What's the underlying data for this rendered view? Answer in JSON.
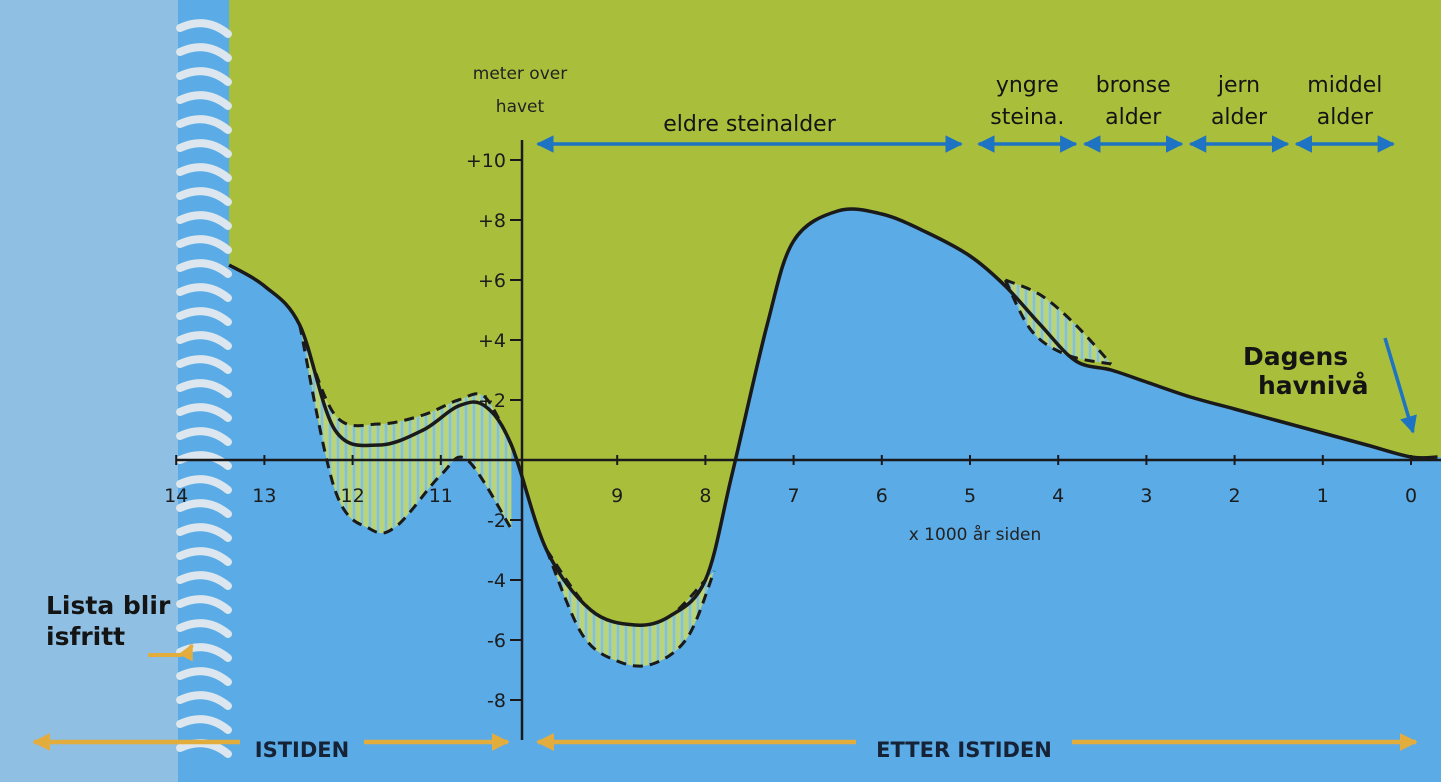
{
  "chart_data": {
    "type": "area",
    "title": "",
    "ylabel": "meter over havet",
    "xlabel": "x 1000 år siden",
    "colors": {
      "land": "#a9bf3c",
      "sea": "#5aabe6",
      "axis": "#1a1a1a",
      "period_arrow": "#1e73c2",
      "era_arrow": "#e3ad3e",
      "ice": "#bcd0df"
    },
    "x_ticks": [
      "14",
      "13",
      "12",
      "11",
      "9",
      "8",
      "7",
      "6",
      "5",
      "4",
      "3",
      "2",
      "1",
      "0"
    ],
    "y_ticks": [
      "+10",
      "+8",
      "+6",
      "+4",
      "+2",
      "-2",
      "-4",
      "-6",
      "-8"
    ],
    "xlim": [
      14,
      0
    ],
    "ylim": [
      -9.5,
      10.5
    ],
    "sea_level": {
      "x": [
        13.4,
        13.0,
        12.6,
        12.2,
        11.7,
        11.2,
        10.8,
        10.5,
        10.2,
        9.8,
        9.3,
        8.8,
        8.4,
        8.0,
        7.7,
        7.3,
        7.0,
        6.5,
        6.0,
        5.5,
        5.0,
        4.6,
        4.2,
        3.8,
        3.4,
        3.0,
        2.5,
        2.0,
        1.5,
        1.0,
        0.5,
        0.0,
        -0.3
      ],
      "y": [
        6.5,
        5.8,
        4.5,
        1.0,
        0.5,
        1.0,
        1.8,
        1.8,
        0.5,
        -3.0,
        -5.0,
        -5.5,
        -5.2,
        -4.0,
        -0.5,
        4.5,
        7.3,
        8.3,
        8.2,
        7.6,
        6.8,
        5.8,
        4.5,
        3.3,
        3.0,
        2.6,
        2.1,
        1.7,
        1.3,
        0.9,
        0.5,
        0.1,
        0.1
      ]
    },
    "uncertainty_bands": [
      {
        "upper": {
          "x": [
            12.6,
            12.2,
            11.7,
            11.2,
            10.8,
            10.5,
            10.2
          ],
          "y": [
            4.5,
            1.5,
            1.2,
            1.5,
            2.0,
            2.1,
            0.5
          ]
        },
        "lower": {
          "x": [
            12.6,
            12.2,
            11.8,
            11.5,
            11.0,
            10.7,
            10.2
          ],
          "y": [
            4.5,
            -1.0,
            -2.3,
            -2.2,
            -0.5,
            0.0,
            -2.3
          ]
        }
      },
      {
        "upper": {
          "x": [
            9.8,
            9.3,
            8.8,
            8.4,
            8.0
          ],
          "y": [
            -3.0,
            -5.0,
            -5.5,
            -5.2,
            -4.0
          ]
        },
        "lower": {
          "x": [
            9.8,
            9.4,
            9.0,
            8.6,
            8.2,
            7.9
          ],
          "y": [
            -3.0,
            -5.8,
            -6.7,
            -6.8,
            -5.9,
            -3.7
          ]
        }
      },
      {
        "upper": {
          "x": [
            4.6,
            4.2,
            3.8,
            3.4
          ],
          "y": [
            6.0,
            5.5,
            4.5,
            3.2
          ]
        },
        "lower": {
          "x": [
            4.6,
            4.3,
            3.9,
            3.4
          ],
          "y": [
            6.0,
            4.3,
            3.5,
            3.2
          ]
        }
      }
    ],
    "periods": [
      {
        "name": "eldre steinalder",
        "from": 9.9,
        "to": 5.1
      },
      {
        "name": "yngre\nsteina.",
        "from": 4.9,
        "to": 3.8
      },
      {
        "name": "bronse\nalder",
        "from": 3.7,
        "to": 2.6
      },
      {
        "name": "jern\nalder",
        "from": 2.5,
        "to": 1.4
      },
      {
        "name": "middel\nalder",
        "from": 1.3,
        "to": 0.2
      }
    ],
    "eras": [
      {
        "name": "ISTIDEN",
        "from": 14.0,
        "to": 10.1
      },
      {
        "name": "ETTER ISTIDEN",
        "from": 9.9,
        "to": 0.0
      }
    ],
    "annotations": [
      {
        "text": "Lista blir\nisfritt",
        "target_x": 13.5,
        "target_y": -6.8
      },
      {
        "text": "Dagens\nhavnivå",
        "target_x": 0.0,
        "target_y": 0.3
      }
    ],
    "y_axis_label_lines": [
      "meter over",
      "havet"
    ]
  }
}
